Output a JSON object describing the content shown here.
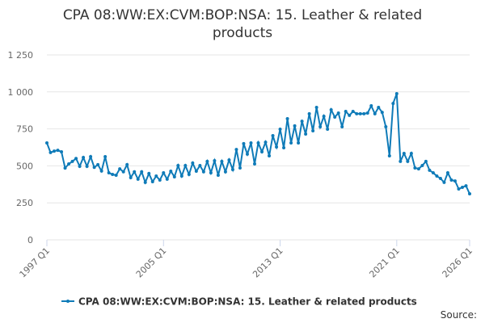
{
  "chart_data": {
    "type": "line",
    "title": "CPA 08:WW:EX:CVM:BOP:NSA: 15. Leather & related products",
    "source": "Source:",
    "categories": [
      "1997 Q1",
      null,
      null,
      null,
      null,
      null,
      null,
      null,
      null,
      null,
      null,
      null,
      null,
      null,
      null,
      null,
      null,
      null,
      null,
      null,
      null,
      null,
      null,
      null,
      null,
      null,
      null,
      null,
      null,
      null,
      null,
      null,
      "2005 Q1",
      null,
      null,
      null,
      null,
      null,
      null,
      null,
      null,
      null,
      null,
      null,
      null,
      null,
      null,
      null,
      null,
      null,
      null,
      null,
      null,
      null,
      null,
      null,
      null,
      null,
      null,
      null,
      null,
      null,
      null,
      null,
      "2013 Q1",
      null,
      null,
      null,
      null,
      null,
      null,
      null,
      null,
      null,
      null,
      null,
      null,
      null,
      null,
      null,
      null,
      null,
      null,
      null,
      null,
      null,
      null,
      null,
      null,
      null,
      null,
      null,
      null,
      null,
      null,
      null,
      "2021 Q1",
      null,
      null,
      null,
      null,
      null,
      null,
      null,
      null,
      null,
      null,
      null,
      null,
      null,
      null,
      null,
      null,
      null,
      null,
      null,
      "2026 Q1"
    ],
    "series": [
      {
        "name": "CPA 08:WW:EX:CVM:BOP:NSA: 15. Leather & related products",
        "color": "#0f7bb8",
        "values": [
          655,
          590,
          600,
          605,
          595,
          485,
          513,
          530,
          550,
          497,
          557,
          497,
          562,
          490,
          508,
          465,
          562,
          453,
          442,
          437,
          480,
          460,
          508,
          420,
          460,
          410,
          460,
          388,
          448,
          393,
          431,
          404,
          453,
          410,
          464,
          426,
          502,
          431,
          502,
          442,
          519,
          464,
          502,
          460,
          530,
          453,
          535,
          437,
          530,
          460,
          540,
          475,
          611,
          486,
          650,
          579,
          655,
          513,
          655,
          595,
          660,
          568,
          704,
          628,
          748,
          622,
          819,
          655,
          770,
          655,
          802,
          715,
          852,
          737,
          895,
          764,
          835,
          748,
          879,
          830,
          857,
          764,
          868,
          841,
          868,
          852,
          852,
          852,
          857,
          906,
          852,
          895,
          862,
          764,
          568,
          922,
          988,
          530,
          584,
          530,
          584,
          486,
          480,
          502,
          530,
          470,
          453,
          431,
          415,
          388,
          453,
          404,
          398,
          344,
          355,
          365,
          311
        ]
      }
    ],
    "ylim": [
      0,
      1250
    ],
    "yticks": [
      0,
      250,
      500,
      750,
      {
        "value": 1000,
        "label": "1 000"
      },
      {
        "value": 1250,
        "label": "1 250"
      }
    ],
    "grid": true,
    "legend": "bottom"
  }
}
